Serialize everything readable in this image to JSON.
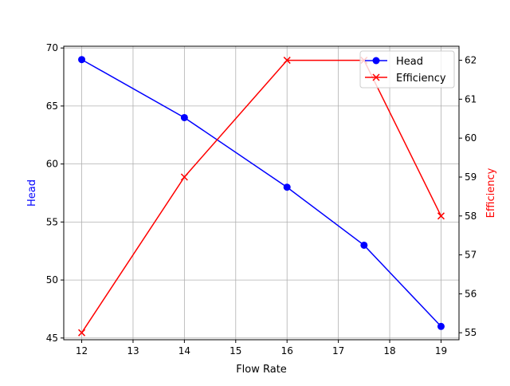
{
  "chart_data": {
    "type": "line",
    "title": "",
    "xlabel": "Flow Rate",
    "ylabel": "Head",
    "ylabel_right": "Efficiency",
    "x": [
      12,
      14,
      16,
      17.5,
      19
    ],
    "series": [
      {
        "name": "Head",
        "axis": "left",
        "color": "#0000ff",
        "marker": "o",
        "values": [
          69,
          64,
          58,
          53,
          46
        ]
      },
      {
        "name": "Efficiency",
        "axis": "right",
        "color": "#ff0000",
        "marker": "x",
        "values": [
          55,
          59,
          62,
          62,
          58
        ]
      }
    ],
    "xlim": [
      11.65,
      19.35
    ],
    "ylim": [
      44.85,
      70.15
    ],
    "ylim_right": [
      54.82,
      62.36
    ],
    "xticks": [
      "12",
      "13",
      "14",
      "15",
      "16",
      "17",
      "18",
      "19"
    ],
    "yticks_left": [
      "45",
      "50",
      "55",
      "60",
      "65",
      "70"
    ],
    "yticks_right": [
      "55",
      "56",
      "57",
      "58",
      "59",
      "60",
      "61",
      "62"
    ],
    "grid": true,
    "legend_position": "upper right"
  },
  "labels": {
    "xlabel": "Flow Rate",
    "ylabel_left": "Head",
    "ylabel_right": "Efficiency",
    "legend": [
      "Head",
      "Efficiency"
    ]
  }
}
